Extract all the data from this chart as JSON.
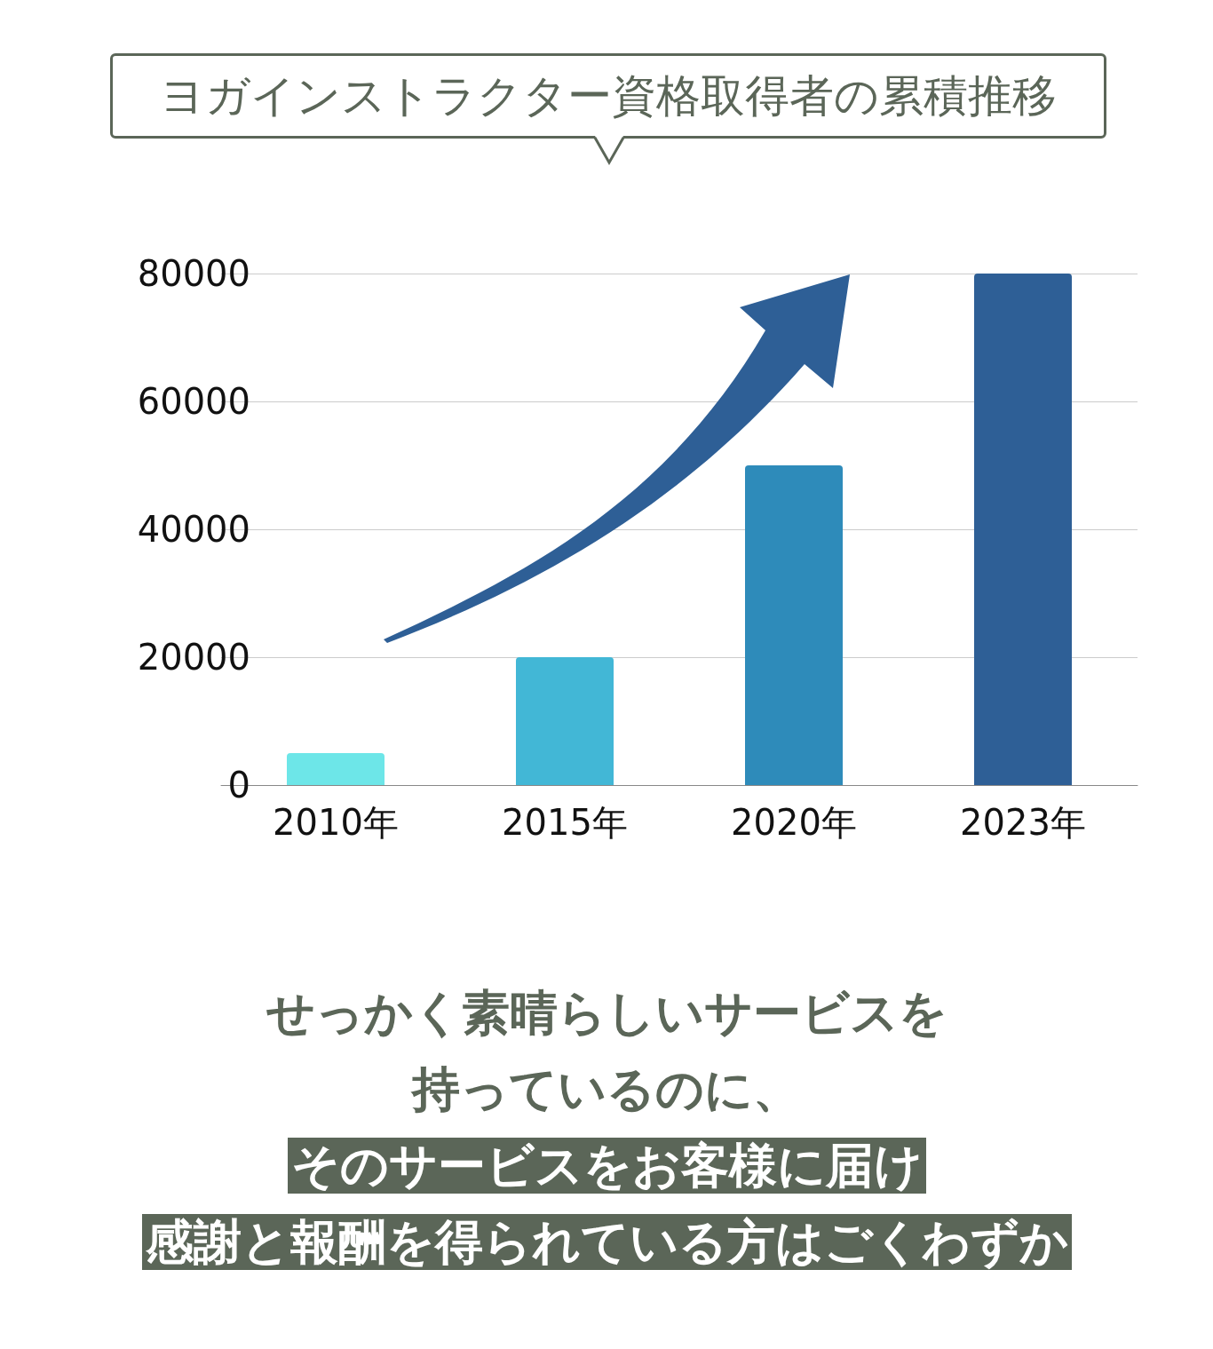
{
  "chart_data": {
    "type": "bar",
    "title": "ヨガインストラクター資格取得者の累積推移",
    "categories": [
      "2010年",
      "2015年",
      "2020年",
      "2023年"
    ],
    "values": [
      5000,
      20000,
      50000,
      80000
    ],
    "colors": [
      "#6de6e8",
      "#42b7d6",
      "#2e8bba",
      "#2e5f96"
    ],
    "ylim": [
      0,
      80000
    ],
    "yticks": [
      0,
      20000,
      40000,
      60000,
      80000
    ],
    "grid": "y",
    "annotations": [
      "せっかく素晴らしいサービスを",
      "持っているのに、",
      "そのサービスをお客様に届け",
      "感謝と報酬を得られている方はごくわずか"
    ]
  }
}
